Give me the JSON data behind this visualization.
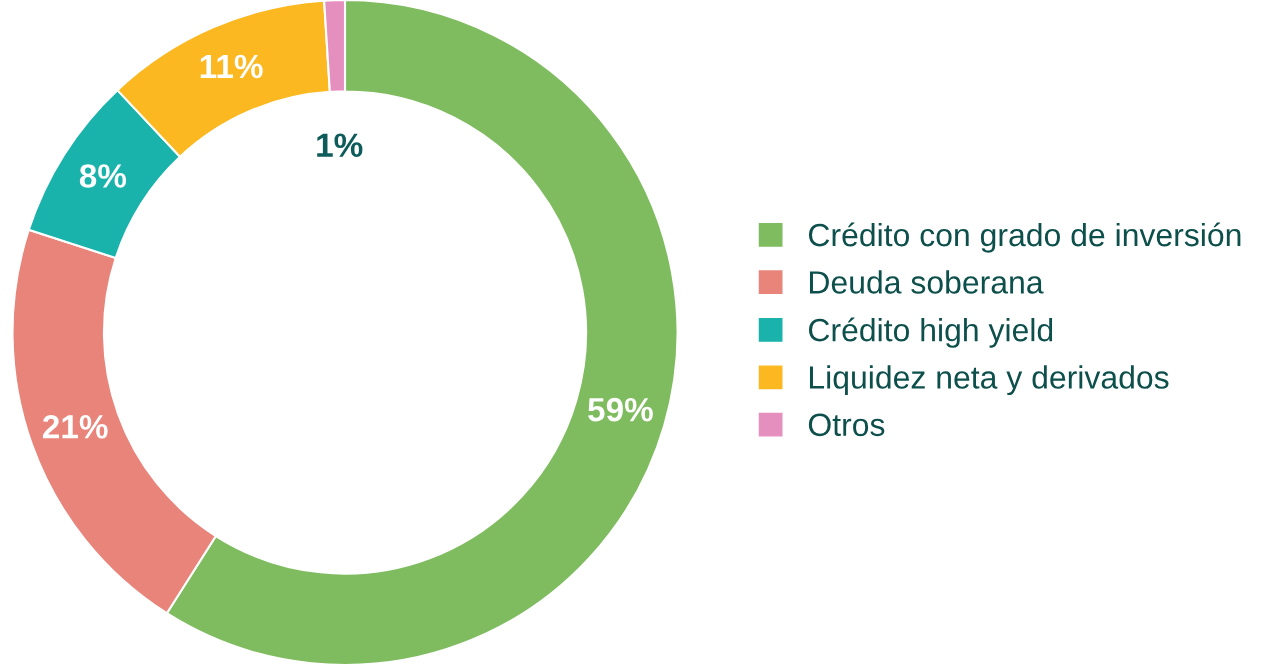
{
  "chart_data": {
    "type": "donut",
    "categories": [
      "Crédito con grado de inversión",
      "Deuda soberana",
      "Crédito high yield",
      "Liquidez neta y derivados",
      "Otros"
    ],
    "values": [
      59,
      21,
      8,
      11,
      1
    ],
    "colors": [
      "#7fbc5f",
      "#e8847a",
      "#1ab3ac",
      "#fbb820",
      "#e58fbf"
    ],
    "value_labels": [
      "59%",
      "21%",
      "8%",
      "11%",
      "1%"
    ],
    "legend": "right"
  }
}
